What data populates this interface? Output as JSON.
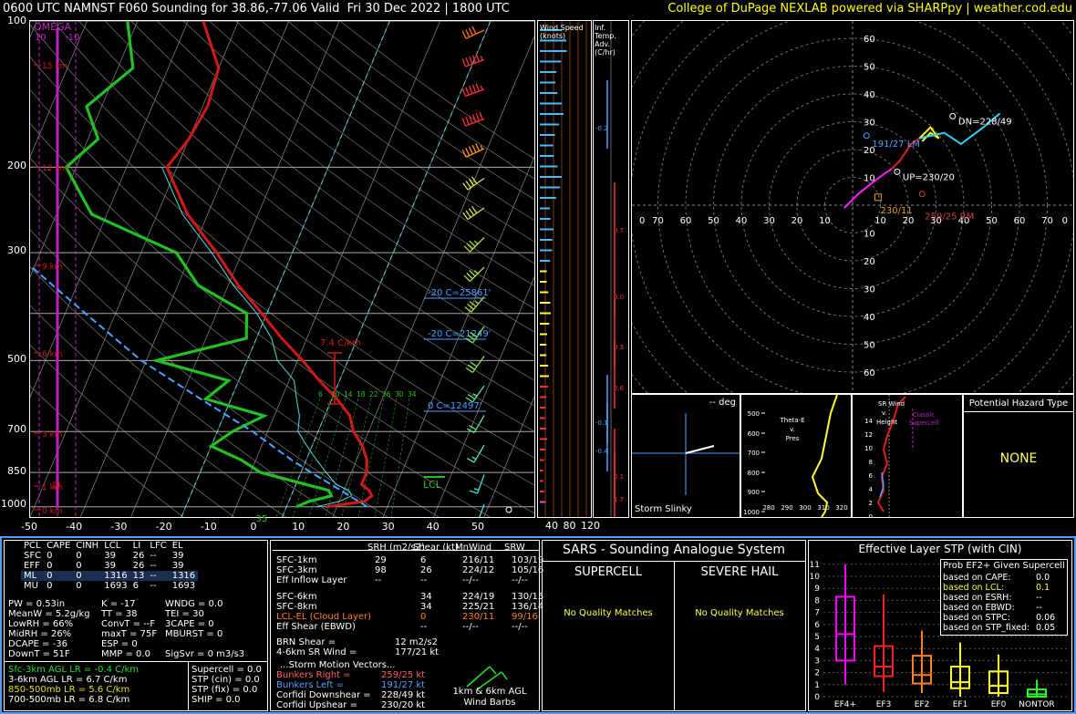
{
  "header": {
    "title": "0600 UTC NAMNST F060 Sounding for 38.86,-77.06 Valid  Fri 30 Dec 2022 | 1800 UTC",
    "credit": "College of DuPage NEXLAB powered via SHARPpy | weather.cod.edu"
  },
  "colors": {
    "temp": "#d21919",
    "dewp": "#22c022",
    "wetbulb": "#4fdcdc",
    "parcel": "#4ea0ff",
    "omega": "#c020c0",
    "credit": "#ffff00",
    "frame": "#4ea0ff"
  },
  "skewt": {
    "pressure_ticks": [
      "100",
      "200",
      "300",
      "400",
      "500",
      "700",
      "850",
      "1000"
    ],
    "temp_ticks": [
      "-50",
      "-40",
      "-30",
      "-20",
      "-10",
      "0",
      "10",
      "20",
      "30",
      "40",
      "50"
    ],
    "height_labels": [
      "15 km",
      "12 km",
      "9 km",
      "6 km",
      "3 km",
      "1 km",
      "0 km"
    ],
    "omega_label": "OMEGA",
    "omega_ticks": [
      "10",
      "-10"
    ],
    "lapse_label": "7.4 C/km",
    "isotherm_labels": [
      "-20 C=25861'",
      "-20 C=21249'",
      "0 C=12497'"
    ],
    "wetbulb_zero_labels": [
      "6",
      "10",
      "14",
      "18",
      "22",
      "26",
      "30",
      "34"
    ],
    "lcl_label": "LCL",
    "sfc_dewp_label": "35",
    "inflow_label": "",
    "inf_temp_label": "Inf. Temp. Adv. (C/hr)",
    "wind_speed_label": "Wind Speed (knots)",
    "wind_ticks": [
      "40",
      "80",
      "120"
    ],
    "adv_values": [
      "-0.2",
      "0.7",
      "0.0",
      "0.3",
      "0.6",
      "-0.1",
      "-0.4",
      "0.1",
      "1.7"
    ]
  },
  "chart_data": [
    {
      "type": "line",
      "title": "",
      "xlabel": "",
      "ylabel": "",
      "y_scale": "log-pressure",
      "ylim": [
        1050,
        100
      ],
      "xlim": [
        -50,
        50
      ],
      "series": [
        {
          "role": "temperature",
          "points": [
            [
              1000,
              8
            ],
            [
              975,
              15
            ],
            [
              950,
              16
            ],
            [
              925,
              15
            ],
            [
              900,
              13
            ],
            [
              850,
              13
            ],
            [
              800,
              12
            ],
            [
              750,
              10
            ],
            [
              700,
              7
            ],
            [
              650,
              5
            ],
            [
              600,
              1
            ],
            [
              550,
              -4
            ],
            [
              500,
              -9
            ],
            [
              450,
              -15
            ],
            [
              400,
              -21
            ],
            [
              350,
              -28
            ],
            [
              300,
              -35
            ],
            [
              250,
              -44
            ],
            [
              200,
              -52
            ],
            [
              175,
              -50
            ],
            [
              150,
              -49
            ],
            [
              125,
              -50
            ],
            [
              100,
              -57
            ]
          ]
        },
        {
          "role": "dewpoint",
          "points": [
            [
              1000,
              2
            ],
            [
              975,
              4
            ],
            [
              950,
              8
            ],
            [
              925,
              7
            ],
            [
              900,
              2
            ],
            [
              850,
              -8
            ],
            [
              800,
              -13
            ],
            [
              750,
              -20
            ],
            [
              700,
              -17
            ],
            [
              650,
              -12
            ],
            [
              600,
              -25
            ],
            [
              550,
              -22
            ],
            [
              500,
              -38
            ],
            [
              450,
              -22
            ],
            [
              400,
              -24
            ],
            [
              350,
              -36
            ],
            [
              300,
              -43
            ],
            [
              250,
              -63
            ],
            [
              200,
              -72
            ],
            [
              175,
              -68
            ],
            [
              150,
              -73
            ],
            [
              125,
              -67
            ],
            [
              100,
              -72
            ]
          ]
        },
        {
          "role": "wetbulb",
          "points": [
            [
              1000,
              6
            ],
            [
              975,
              10
            ],
            [
              950,
              12
            ],
            [
              925,
              11
            ],
            [
              900,
              8
            ],
            [
              850,
              5
            ],
            [
              800,
              2
            ],
            [
              750,
              -1
            ],
            [
              700,
              -4
            ],
            [
              650,
              -5
            ],
            [
              600,
              -7
            ],
            [
              550,
              -9
            ],
            [
              500,
              -14
            ],
            [
              450,
              -17
            ],
            [
              400,
              -22
            ],
            [
              350,
              -29
            ],
            [
              300,
              -36
            ],
            [
              250,
              -45
            ],
            [
              200,
              -53
            ]
          ]
        },
        {
          "role": "parcel",
          "points": [
            [
              1000,
              16
            ],
            [
              900,
              7
            ],
            [
              850,
              2
            ],
            [
              800,
              -3
            ],
            [
              700,
              -13
            ],
            [
              600,
              -26
            ],
            [
              500,
              -41
            ],
            [
              400,
              -56
            ],
            [
              300,
              -75
            ]
          ]
        }
      ]
    },
    {
      "type": "line",
      "title": "",
      "subtitle": "hodograph",
      "xlim": [
        -70,
        70
      ],
      "ylim": [
        -70,
        70
      ],
      "series": [
        {
          "role": "0-3km",
          "points": [
            [
              -3,
              -1
            ],
            [
              2,
              4
            ],
            [
              7,
              8
            ],
            [
              11,
              11
            ],
            [
              14,
              13
            ]
          ]
        },
        {
          "role": "3-6km",
          "points": [
            [
              14,
              13
            ],
            [
              17,
              16
            ],
            [
              21,
              22
            ],
            [
              24,
              24
            ],
            [
              27,
              25
            ]
          ]
        },
        {
          "role": "6-9km",
          "points": [
            [
              27,
              25
            ],
            [
              25,
              23
            ],
            [
              28,
              26
            ],
            [
              31,
              24
            ],
            [
              28,
              28
            ],
            [
              24,
              24
            ]
          ]
        },
        {
          "role": "9-12km",
          "points": [
            [
              24,
              24
            ],
            [
              33,
              26
            ],
            [
              39,
              22
            ],
            [
              47,
              28
            ],
            [
              53,
              33
            ]
          ]
        }
      ],
      "markers": {
        "dn": "DN=228/49",
        "left": "191/27 LM",
        "up": "UP=230/20",
        "mean": "230/11",
        "right": "259/25 RM"
      },
      "ring_ticks": [
        "10",
        "20",
        "30",
        "40",
        "50",
        "60",
        "70"
      ]
    },
    {
      "type": "bar",
      "title": "Effective Layer STP (with CIN)",
      "categories": [
        "EF4+",
        "EF3",
        "EF2",
        "EF1",
        "EF0",
        "NONTOR"
      ],
      "ylim": [
        0,
        11
      ],
      "series": [
        {
          "stat": "box",
          "values": [
            [
              1,
              3,
              5.2,
              8.3,
              11
            ],
            [
              0.4,
              1.7,
              2.5,
              4.2,
              8.5
            ],
            [
              0.3,
              1.1,
              1.8,
              3.4,
              5.5
            ],
            [
              0,
              0.7,
              1.2,
              2.5,
              4.5
            ],
            [
              0,
              0.3,
              0.9,
              2.1,
              3.5
            ],
            [
              0,
              0,
              0.2,
              0.6,
              1.4
            ]
          ]
        }
      ],
      "colors": [
        "#ff00ff",
        "#ff2020",
        "#ff8020",
        "#ffff20",
        "#ffff20",
        "#20ff20"
      ]
    }
  ],
  "params": {
    "head": [
      "PCL",
      "CAPE",
      "CINH",
      "LCL",
      "LI",
      "LFC",
      "EL"
    ],
    "rows": [
      [
        "SFC",
        "0",
        "0",
        "39",
        "26",
        "--",
        "39"
      ],
      [
        "EFF",
        "0",
        "0",
        "39",
        "26",
        "--",
        "39"
      ],
      [
        "ML",
        "0",
        "0",
        "1316",
        "13",
        "--",
        "1316"
      ],
      [
        "MU",
        "0",
        "0",
        "1693",
        "6",
        "--",
        "1693"
      ]
    ],
    "misc": [
      [
        "PW = 0.53in",
        "K = -17",
        "WNDG = 0.0"
      ],
      [
        "MeanW = 5.2g/kg",
        "TT = 38",
        "TEI = 30"
      ],
      [
        "LowRH = 66%",
        "ConvT = --F",
        "3CAPE = 0"
      ],
      [
        "MidRH = 26%",
        "maxT = 75F",
        "MBURST = 0"
      ],
      [
        "DCAPE = -36",
        "ESP = 0",
        ""
      ],
      [
        "DownT = 51F",
        "MMP = 0.0",
        "SigSvr = 0 m3/s3"
      ]
    ],
    "lapse": [
      "Sfc-3km AGL LR = -0.4 C/km",
      "3-6km AGL LR = 6.7 C/km",
      "850-500mb LR = 5.6 C/km",
      "700-500mb LR = 6.8 C/km"
    ],
    "composite": [
      "Supercell = 0.0",
      "STP (cin) = 0.0",
      "STP (fix) = 0.0",
      "SHIP = 0.0"
    ]
  },
  "kinematics": {
    "head": [
      "",
      "SRH (m2/s2)",
      "Shear (kt)",
      "MnWind",
      "SRW"
    ],
    "rows": [
      [
        "SFC-1km",
        "29",
        "6",
        "216/11",
        "103/19"
      ],
      [
        "SFC-3km",
        "98",
        "26",
        "224/12",
        "105/16"
      ],
      [
        "Eff Inflow Layer",
        "--",
        "--",
        "--/--",
        "--/--"
      ],
      [
        "SFC-6km",
        "",
        "34",
        "224/19",
        "130/15"
      ],
      [
        "SFC-8km",
        "",
        "34",
        "225/21",
        "136/14"
      ],
      [
        "LCL-EL (Cloud Layer)",
        "",
        "0",
        "230/11",
        "99/16"
      ],
      [
        "Eff Shear (EBWD)",
        "",
        "--",
        "--/--",
        "--/--"
      ]
    ],
    "brn": [
      "BRN Shear =",
      "12 m2/s2"
    ],
    "srwind": [
      "4-6km SR Wind =",
      "177/21 kt"
    ],
    "storm_title": "...Storm Motion Vectors...",
    "storm": [
      [
        "Bunkers Right =",
        "259/25 kt"
      ],
      [
        "Bunkers Left =",
        "191/27 kt"
      ],
      [
        "Corfidi Downshear =",
        "228/49 kt"
      ],
      [
        "Corfidi Upshear =",
        "230/20 kt"
      ]
    ],
    "barb_caption": "1km & 6km AGL\nWind Barbs"
  },
  "sars": {
    "title": "SARS - Sounding Analogue System",
    "supercell": "SUPERCELL",
    "hail": "SEVERE HAIL",
    "no_match": "No Quality Matches"
  },
  "stp": {
    "title": "Effective Layer STP (with CIN)",
    "prob_title": "Prob EF2+ Given Supercell",
    "probs": [
      [
        "based on CAPE:",
        "0.0"
      ],
      [
        "based on LCL:",
        "0.1"
      ],
      [
        "based on ESRH:",
        "--"
      ],
      [
        "based on EBWD:",
        "--"
      ],
      [
        "based on STPC:",
        "0.06"
      ],
      [
        "based on STP_fixed:",
        "0.05"
      ]
    ],
    "yticks": [
      "0",
      "1",
      "2",
      "3",
      "4",
      "5",
      "6",
      "7",
      "8",
      "9",
      "10",
      "11"
    ]
  },
  "slinky": {
    "label": "Storm Slinky",
    "deg": "-- deg"
  },
  "theta": {
    "label": "Theta-E\nv.\nPres",
    "yticks": [
      "500",
      "600",
      "700",
      "800",
      "900",
      "1000"
    ],
    "xticks": [
      "280",
      "290",
      "300",
      "310",
      "320"
    ]
  },
  "srwind_panel": {
    "label": "SR Wind\nv.\nHeight",
    "classic": "Classic\nSupercell",
    "yticks": [
      "14",
      "12",
      "10",
      "8",
      "6",
      "4",
      "2",
      "0"
    ]
  },
  "hazard": {
    "title": "Potential Hazard Type",
    "value": "NONE"
  }
}
